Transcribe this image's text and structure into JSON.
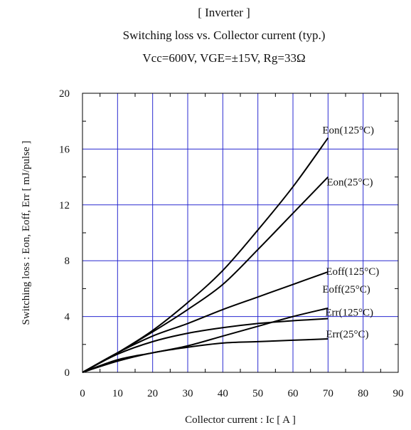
{
  "chart_data": {
    "type": "line",
    "title_lines": [
      "[ Inverter ]",
      "Switching loss  vs.  Collector current  (typ.)",
      "Vcc=600V, VGE=±15V, Rg=33Ω"
    ],
    "xlabel": "Collector current  :  Ic  [ A ]",
    "ylabel": "Switching loss  :  Eon, Eoff, Err  [ mJ/pulse ]",
    "xlim": [
      0,
      90
    ],
    "ylim": [
      0,
      20
    ],
    "x_ticks": [
      "0",
      "10",
      "20",
      "30",
      "40",
      "50",
      "60",
      "70",
      "80",
      "90"
    ],
    "y_ticks": [
      "0",
      "4",
      "8",
      "12",
      "16",
      "20"
    ],
    "grid": true,
    "series": [
      {
        "name": "Eon(125°C)",
        "x": [
          0,
          10,
          20,
          30,
          40,
          50,
          60,
          70
        ],
        "y": [
          0,
          1.4,
          3.0,
          5.0,
          7.3,
          10.2,
          13.3,
          16.8
        ]
      },
      {
        "name": "Eon(25°C)",
        "x": [
          0,
          10,
          20,
          30,
          40,
          50,
          60,
          70
        ],
        "y": [
          0,
          1.4,
          2.9,
          4.5,
          6.3,
          8.8,
          11.4,
          14.0
        ]
      },
      {
        "name": "Eoff(125°C)",
        "x": [
          0,
          10,
          20,
          30,
          40,
          50,
          60,
          70
        ],
        "y": [
          0,
          1.4,
          2.6,
          3.5,
          4.5,
          5.4,
          6.3,
          7.2
        ]
      },
      {
        "name": "Eoff(25°C)",
        "x": [
          0,
          10,
          20,
          30,
          40,
          50,
          60,
          70
        ],
        "y": [
          0,
          0.9,
          1.4,
          1.9,
          2.6,
          3.3,
          4.0,
          4.6
        ]
      },
      {
        "name": "Err(125°C)",
        "x": [
          0,
          10,
          20,
          30,
          40,
          50,
          60,
          70
        ],
        "y": [
          0,
          1.3,
          2.2,
          2.8,
          3.2,
          3.5,
          3.7,
          3.85
        ]
      },
      {
        "name": "Err(25°C)",
        "x": [
          0,
          10,
          20,
          30,
          40,
          50,
          60,
          70
        ],
        "y": [
          0,
          0.8,
          1.4,
          1.8,
          2.1,
          2.2,
          2.3,
          2.4
        ]
      }
    ]
  }
}
